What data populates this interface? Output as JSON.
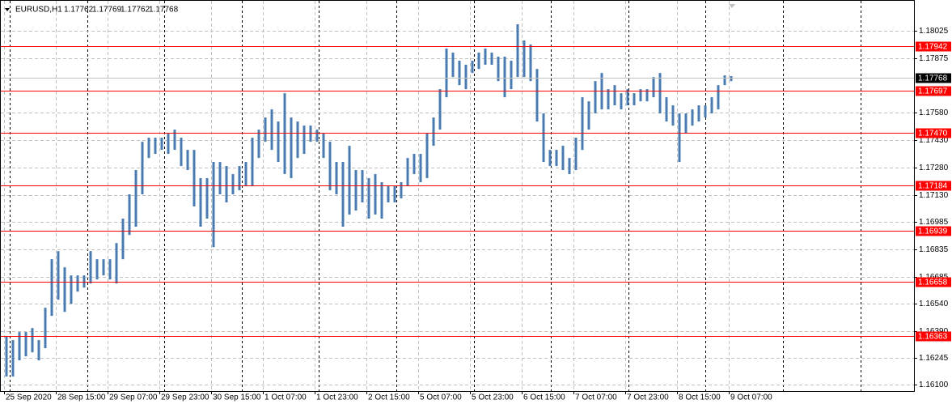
{
  "chart_data": {
    "type": "hilo",
    "symbol": "EURUSD,H1",
    "quote": [
      1.17762,
      1.17769,
      1.17762,
      1.17768
    ],
    "color": "#4a7bb0",
    "level_color": "#ff0000",
    "grid": true,
    "categories": [
      "25 Sep 2020",
      null,
      null,
      null,
      null,
      null,
      null,
      null,
      "28 Sep 15:00",
      null,
      null,
      null,
      null,
      null,
      null,
      null,
      "29 Sep 07:00",
      null,
      null,
      null,
      null,
      null,
      null,
      null,
      "29 Sep 23:00",
      null,
      null,
      null,
      null,
      null,
      null,
      null,
      "30 Sep 15:00",
      null,
      null,
      null,
      null,
      null,
      null,
      null,
      "1 Oct 07:00",
      null,
      null,
      null,
      null,
      null,
      null,
      null,
      "1 Oct 23:00",
      null,
      null,
      null,
      null,
      null,
      null,
      null,
      "2 Oct 15:00",
      null,
      null,
      null,
      null,
      null,
      null,
      null,
      "5 Oct 07:00",
      null,
      null,
      null,
      null,
      null,
      null,
      null,
      "5 Oct 23:00",
      null,
      null,
      null,
      null,
      null,
      null,
      null,
      "6 Oct 15:00",
      null,
      null,
      null,
      null,
      null,
      null,
      null,
      "7 Oct 07:00",
      null,
      null,
      null,
      null,
      null,
      null,
      null,
      "7 Oct 23:00",
      null,
      null,
      null,
      null,
      null,
      null,
      null,
      "8 Oct 15:00",
      null,
      null,
      null,
      null,
      null,
      null,
      null,
      "9 Oct 07:00"
    ],
    "high": [
      1.16364,
      1.16342,
      1.16386,
      1.16386,
      1.16408,
      1.16342,
      1.16518,
      1.16782,
      1.16826,
      1.16738,
      1.16694,
      1.16694,
      1.16694,
      1.16826,
      1.16782,
      1.16782,
      1.16782,
      1.1687,
      1.17003,
      1.17135,
      1.17267,
      1.17421,
      1.17443,
      1.17443,
      1.17443,
      1.17465,
      1.17487,
      1.17443,
      1.17377,
      1.17377,
      1.17223,
      1.17223,
      1.17311,
      1.17311,
      1.17289,
      1.17245,
      1.17289,
      1.17311,
      1.17443,
      1.17487,
      1.17553,
      1.17597,
      1.17531,
      1.17685,
      1.17553,
      1.17531,
      1.17509,
      1.17509,
      1.17487,
      1.17465,
      1.17421,
      1.17311,
      1.17311,
      1.17399,
      1.17267,
      1.17267,
      1.17223,
      1.17245,
      1.17201,
      1.17179,
      1.17179,
      1.17201,
      1.17333,
      1.17355,
      1.17355,
      1.17465,
      1.17553,
      1.17707,
      1.17928,
      1.17906,
      1.17862,
      1.1784,
      1.17862,
      1.17906,
      1.17928,
      1.17906,
      1.17884,
      1.17884,
      1.17862,
      1.1806,
      1.17972,
      1.1795,
      1.17817,
      1.17575,
      1.17377,
      1.17377,
      1.17399,
      1.17333,
      1.17443,
      1.17663,
      1.17641,
      1.17751,
      1.17795,
      1.17707,
      1.17729,
      1.17685,
      1.17707,
      1.17685,
      1.17707,
      1.17707,
      1.17773,
      1.17795,
      1.17663,
      1.17619,
      1.17575,
      1.17575,
      1.17597,
      1.17619,
      1.17619,
      1.17663,
      1.17729,
      1.17782,
      1.17778
    ],
    "low": [
      1.16144,
      1.16144,
      1.16232,
      1.16254,
      1.16276,
      1.16232,
      1.16298,
      1.16474,
      1.16562,
      1.16496,
      1.1654,
      1.16606,
      1.16628,
      1.1665,
      1.16672,
      1.16694,
      1.16672,
      1.1665,
      1.16782,
      1.16914,
      1.16959,
      1.17135,
      1.17333,
      1.17355,
      1.17377,
      1.17355,
      1.17377,
      1.17289,
      1.17267,
      1.17069,
      1.16959,
      1.17003,
      1.16848,
      1.17135,
      1.17091,
      1.17135,
      1.17157,
      1.17179,
      1.17179,
      1.17333,
      1.17421,
      1.17377,
      1.17311,
      1.17245,
      1.17223,
      1.17333,
      1.17355,
      1.17421,
      1.17421,
      1.17333,
      1.17157,
      1.17135,
      1.16959,
      1.17025,
      1.17047,
      1.17091,
      1.17003,
      1.17025,
      1.17003,
      1.17091,
      1.17091,
      1.17113,
      1.17179,
      1.17245,
      1.17201,
      1.17223,
      1.17399,
      1.17487,
      1.17663,
      1.17773,
      1.17729,
      1.17707,
      1.17795,
      1.17817,
      1.1784,
      1.1784,
      1.17751,
      1.17663,
      1.17707,
      1.17773,
      1.17773,
      1.17751,
      1.17531,
      1.17311,
      1.17289,
      1.17289,
      1.17267,
      1.17245,
      1.17267,
      1.17377,
      1.17487,
      1.17575,
      1.17597,
      1.17597,
      1.17619,
      1.17597,
      1.17619,
      1.17619,
      1.17641,
      1.17641,
      1.17663,
      1.17575,
      1.17531,
      1.17509,
      1.17311,
      1.17465,
      1.17509,
      1.17531,
      1.17553,
      1.17575,
      1.17597,
      1.17729,
      1.17751
    ],
    "ylim": [
      1.16065,
      1.18192
    ],
    "yticks": [
      1.18025,
      1.17875,
      {
        "value": 1.1758,
        "label": "1.17580"
      },
      {
        "value": 1.1743,
        "label": "1.17430"
      },
      {
        "value": 1.1728,
        "label": "1.17280"
      },
      {
        "value": 1.1713,
        "label": "1.17130"
      },
      1.16985,
      1.16835,
      1.16685,
      {
        "value": 1.1654,
        "label": "1.16540"
      },
      {
        "value": 1.1639,
        "label": "1.16390"
      },
      1.16245,
      {
        "value": 1.161,
        "label": "1.16100"
      }
    ],
    "levels": [
      1.17942,
      1.17697,
      {
        "value": 1.1747,
        "label": "1.17470"
      },
      1.17184,
      1.16939,
      1.16658,
      1.16363
    ],
    "last": 1.17768
  }
}
